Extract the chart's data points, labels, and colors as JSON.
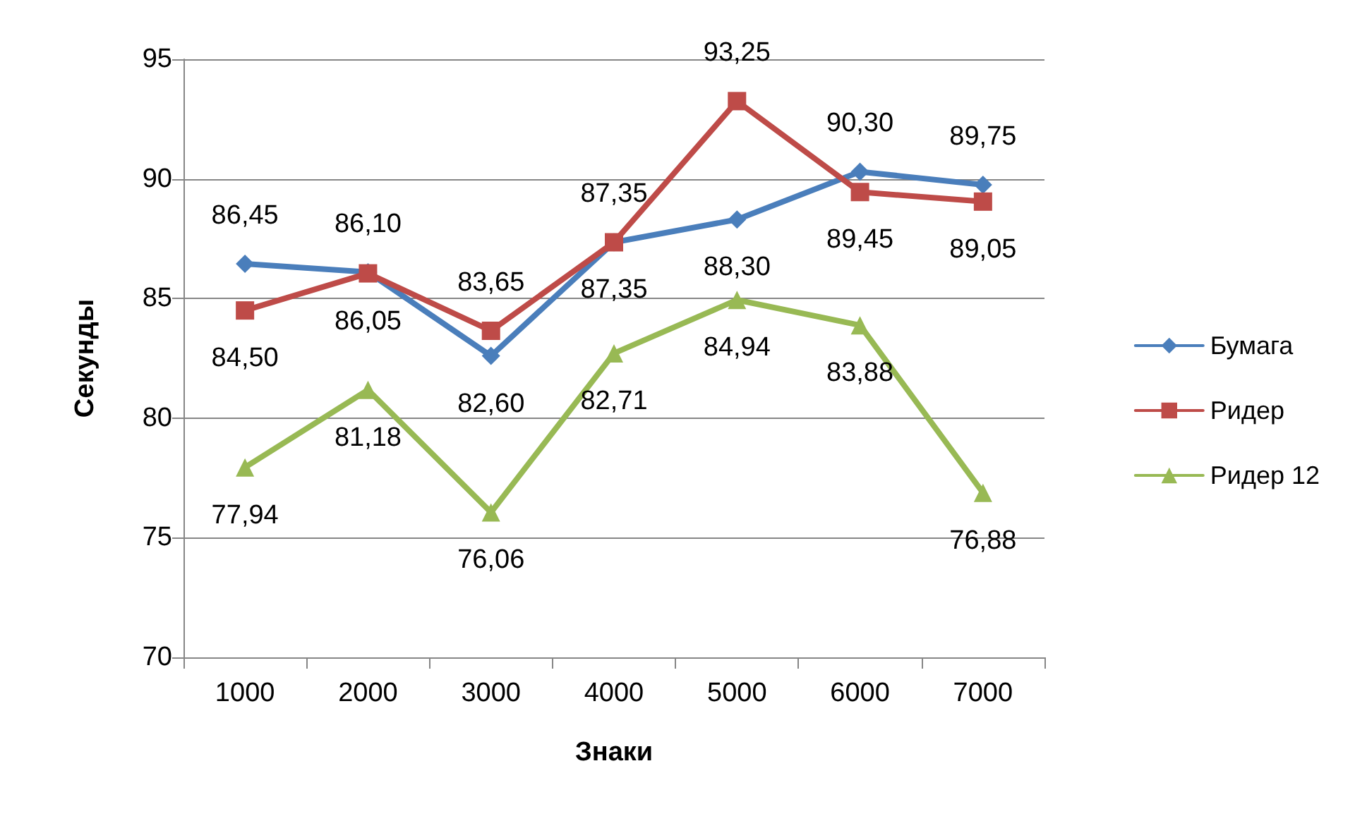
{
  "chart_data": {
    "type": "line",
    "xlabel": "Знаки",
    "ylabel": "Секунды",
    "categories": [
      "1000",
      "2000",
      "3000",
      "4000",
      "5000",
      "6000",
      "7000"
    ],
    "series": [
      {
        "name": "Бумага",
        "color": "#4a7ebb",
        "marker": "diamond",
        "values": [
          86.45,
          86.1,
          82.6,
          87.35,
          88.3,
          90.3,
          89.75
        ],
        "value_labels": [
          "86,45",
          "86,10",
          "82,60",
          "87,35",
          "88,30",
          "90,30",
          "89,75"
        ]
      },
      {
        "name": "Ридер",
        "color": "#be4b48",
        "marker": "square",
        "values": [
          84.5,
          86.05,
          83.65,
          87.35,
          93.25,
          89.45,
          89.05
        ],
        "value_labels": [
          "84,50",
          "86,05",
          "83,65",
          "87,35",
          "93,25",
          "89,45",
          "89,05"
        ]
      },
      {
        "name": "Ридер 12",
        "color": "#98b954",
        "marker": "triangle",
        "values": [
          77.94,
          81.18,
          76.06,
          82.71,
          84.94,
          83.88,
          76.88
        ],
        "value_labels": [
          "77,94",
          "81,18",
          "76,06",
          "82,71",
          "84,94",
          "83,88",
          "76,88"
        ]
      }
    ],
    "ylim": [
      70,
      95
    ],
    "yticks": [
      70,
      75,
      80,
      85,
      90,
      95
    ],
    "grid": "y",
    "legend": "right",
    "line_style": "solid"
  }
}
